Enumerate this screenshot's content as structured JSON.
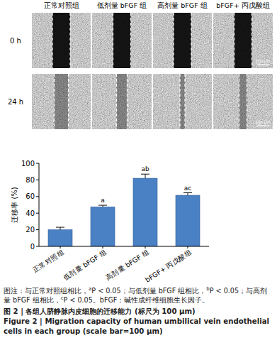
{
  "panel": {
    "columns": [
      "正常对照组",
      "低剂量 bFGF 组",
      "高剂量 bFGF 组",
      "bFGF+ 丙戊酸组"
    ],
    "rows": [
      "0 h",
      "24 h"
    ],
    "scale_bar": "100 μm"
  },
  "chart_data": {
    "type": "bar",
    "categories": [
      "正常对照组",
      "低剂量 bFGF 组",
      "高剂量 bFGF 组",
      "bFGF+ 丙戊酸组"
    ],
    "values": [
      20,
      47.5,
      82,
      61.5
    ],
    "errors": [
      3,
      2,
      5,
      3
    ],
    "annotations": [
      null,
      "a",
      "ab",
      "ac"
    ],
    "y_label": "迁移率 (%)",
    "color": "#4a80c4",
    "ylim": [
      0,
      100
    ],
    "yticks": [
      0,
      20,
      40,
      60,
      80,
      100
    ],
    "grid": false
  },
  "caption": {
    "note": [
      {
        "text": "图注：与正常对照组相比，"
      },
      {
        "sup": "a"
      },
      {
        "text": "P < 0.05；与低剂量 bFGF 组相比，"
      },
      {
        "sup": "b"
      },
      {
        "text": "P < 0.05；与高剂量 bFGF 组相比，"
      },
      {
        "sup": "c"
      },
      {
        "text": "P < 0.05。bFGF：碱性成纤维细胞生长因子。"
      }
    ],
    "title_zh": "图 2 | 各组人脐静脉内皮细胞的迁移能力 (标尺为 100 μm)",
    "title_en": "Figure 2 | Migration capacity of human umbilical vein endothelial cells in each group (scale bar=100 μm)"
  }
}
